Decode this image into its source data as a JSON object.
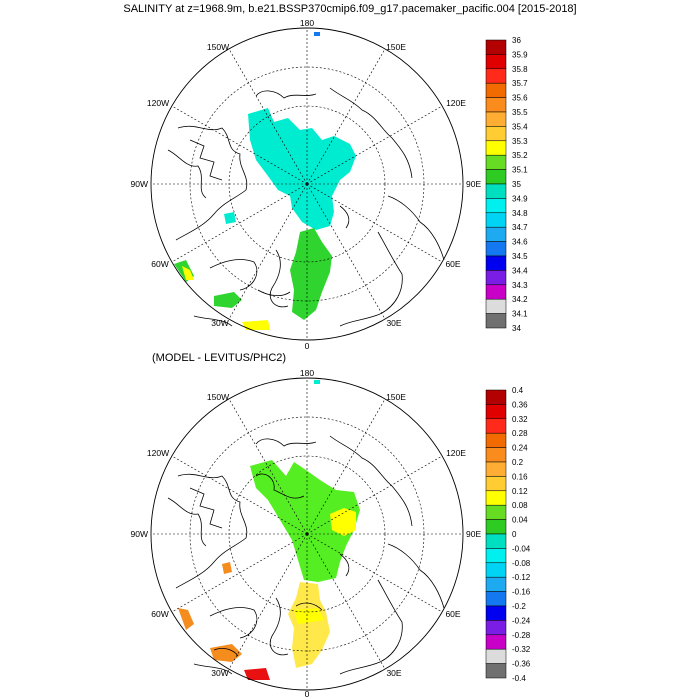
{
  "title": "SALINITY at z=1968.9m, b.e21.BSSP370cmip6.f09_g17.pacemaker_pacific.004 [2015-2018]",
  "subtitle": "(MODEL - LEVITUS/PHC2)",
  "lon_labels": {
    "top": "180",
    "bottom": "0",
    "left": "90W",
    "right": "90E",
    "upper_left": "150W",
    "upper_right": "150E",
    "left_upper": "120W",
    "right_upper": "120E",
    "left_lower": "60W",
    "right_lower": "60E",
    "lower_left": "30W",
    "lower_right": "30E"
  },
  "colorbar1": {
    "labels": [
      "36",
      "35.9",
      "35.8",
      "35.7",
      "35.6",
      "35.5",
      "35.4",
      "35.3",
      "35.2",
      "35.1",
      "35",
      "34.9",
      "34.8",
      "34.7",
      "34.6",
      "34.5",
      "34.4",
      "34.3",
      "34.2",
      "34.1",
      "34"
    ],
    "colors": [
      "#b30000",
      "#e00000",
      "#ff2a1a",
      "#f26b00",
      "#fa8c1e",
      "#ffae33",
      "#ffcc33",
      "#ffff00",
      "#66dd22",
      "#2ecc22",
      "#00e0c0",
      "#00f0f0",
      "#00d4f4",
      "#1eaaf0",
      "#1478f0",
      "#0000f0",
      "#7a1ee6",
      "#c800c8",
      "#dcdcdc",
      "#707070"
    ]
  },
  "colorbar2": {
    "labels": [
      "0.4",
      "0.36",
      "0.32",
      "0.28",
      "0.24",
      "0.2",
      "0.16",
      "0.12",
      "0.08",
      "0.04",
      "0",
      "-0.04",
      "-0.08",
      "-0.12",
      "-0.16",
      "-0.2",
      "-0.24",
      "-0.28",
      "-0.32",
      "-0.36",
      "-0.4"
    ],
    "colors": [
      "#b30000",
      "#e00000",
      "#ff2a1a",
      "#f26b00",
      "#fa8c1e",
      "#ffae33",
      "#ffcc33",
      "#ffff00",
      "#66dd22",
      "#2ecc22",
      "#00e0c0",
      "#00f0f0",
      "#00d4f4",
      "#1eaaf0",
      "#1478f0",
      "#0000f0",
      "#7a1ee6",
      "#c800c8",
      "#dcdcdc",
      "#707070"
    ]
  },
  "fills": {
    "cyan": "#00ecd0",
    "green": "#2fd42f",
    "bright_green": "#55ee22",
    "yellow": "#ffe94a",
    "orange": "#f58c1e",
    "red": "#e81010",
    "blue": "#1478f0"
  }
}
